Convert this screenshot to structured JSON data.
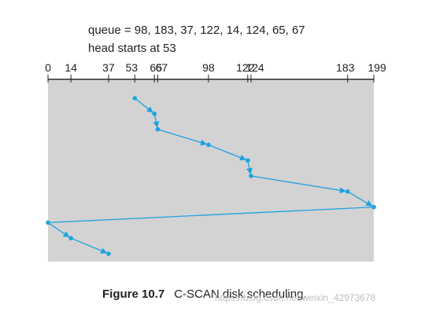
{
  "header": {
    "queue_text": "queue = 98, 183, 37, 122, 14, 124, 65, 67",
    "head_text": "head starts at 53"
  },
  "axis": {
    "min": 0,
    "max": 199,
    "ticks": [
      {
        "value": 0,
        "label": "0"
      },
      {
        "value": 14,
        "label": "14"
      },
      {
        "value": 37,
        "label": "37"
      },
      {
        "value": 53,
        "label": "53"
      },
      {
        "value": 65,
        "label": "65"
      },
      {
        "value": 67,
        "label": "67"
      },
      {
        "value": 98,
        "label": "98"
      },
      {
        "value": 122,
        "label": "122"
      },
      {
        "value": 124,
        "label": "124"
      },
      {
        "value": 183,
        "label": "183"
      },
      {
        "value": 199,
        "label": "199"
      }
    ]
  },
  "path": [
    53,
    65,
    67,
    98,
    122,
    124,
    183,
    199,
    0,
    14,
    37
  ],
  "colors": {
    "line": "#1ea2e0",
    "panel": "#d3d3d3",
    "axis": "#222222"
  },
  "caption": {
    "figure": "Figure 10.7",
    "title": "C-SCAN disk scheduling."
  },
  "watermark": "https://blog.csdn.net/weixin_42973678"
}
